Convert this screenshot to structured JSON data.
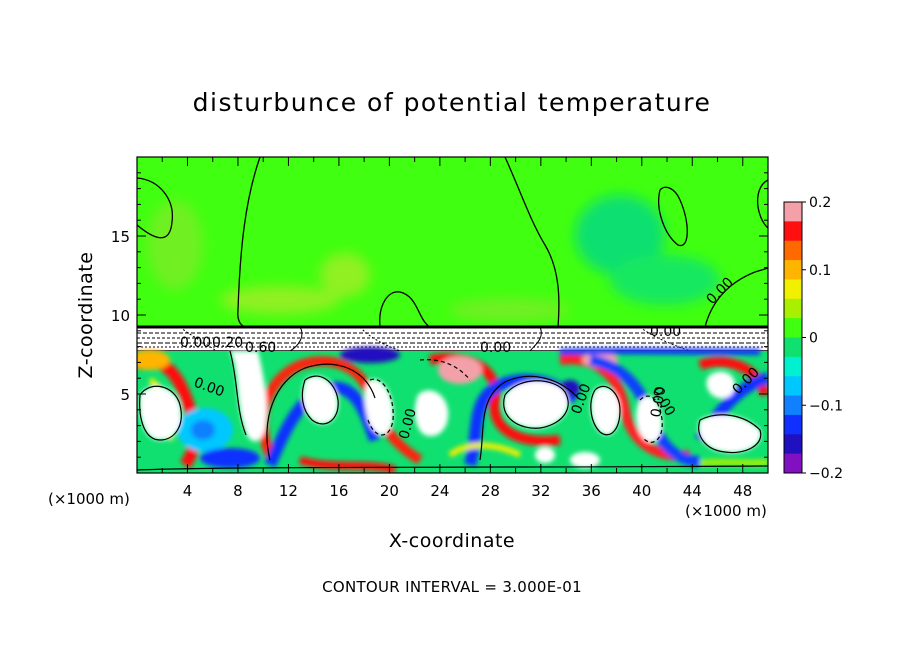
{
  "chart_data": {
    "type": "heatmap",
    "title": "disturbunce of potential temperature",
    "xlabel": "X-coordinate",
    "ylabel": "Z-coordinate",
    "x_unit": "(×1000 m)",
    "z_unit": "(×1000 m)",
    "xlim": [
      0,
      50
    ],
    "ylim": [
      0,
      20
    ],
    "x_ticks": [
      4,
      8,
      12,
      16,
      20,
      24,
      28,
      32,
      36,
      40,
      44,
      48
    ],
    "y_ticks": [
      5,
      10,
      15
    ],
    "colorbar": {
      "range": [
        -0.2,
        0.2
      ],
      "tick_values": [
        0.2,
        0.1,
        0,
        -0.1,
        -0.2
      ],
      "tick_labels": [
        "0.2",
        "0.1",
        "0",
        "−0.1",
        "−0.2"
      ],
      "colors": [
        "#f4a0a8",
        "#ff1010",
        "#ff6a00",
        "#ffb400",
        "#f0f000",
        "#a8f000",
        "#40ff10",
        "#10e070",
        "#00f0d0",
        "#00c8ff",
        "#1080ff",
        "#1030ff",
        "#2010c0",
        "#8010c0"
      ]
    },
    "contour_labels": [
      "0.00",
      "0.20",
      "0.60",
      "0.00",
      "0.00",
      "0.00",
      "0.00",
      "0.00",
      "0.00",
      "0.00",
      "0.00",
      "0.00"
    ],
    "contour_interval_text": "CONTOUR INTERVAL = 3.000E-01",
    "colors": {
      "upper_green": "#40ff10",
      "light_green": "#90f020",
      "teal": "#10e070",
      "white_region": "#ffffff",
      "contour_line": "#000000"
    }
  }
}
